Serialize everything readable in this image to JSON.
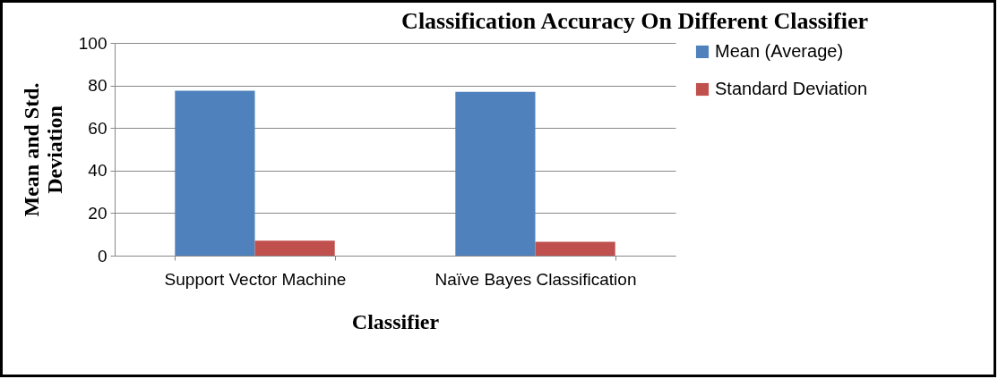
{
  "chart_data": {
    "type": "bar",
    "title": "Classification Accuracy On Different Classifier",
    "xlabel": "Classifier",
    "ylabel": "Mean and Std. Deviation",
    "categories": [
      "Support Vector Machine",
      "Naïve Bayes Classification"
    ],
    "series": [
      {
        "name": "Mean (Average)",
        "color": "#4f81bd",
        "values": [
          77.5,
          77
        ]
      },
      {
        "name": "Standard Deviation",
        "color": "#c0504d",
        "values": [
          7,
          6.5
        ]
      }
    ],
    "ylim": [
      0,
      100
    ],
    "yticks": [
      0,
      20,
      40,
      60,
      80,
      100
    ],
    "grid": "y",
    "legend": "right"
  }
}
